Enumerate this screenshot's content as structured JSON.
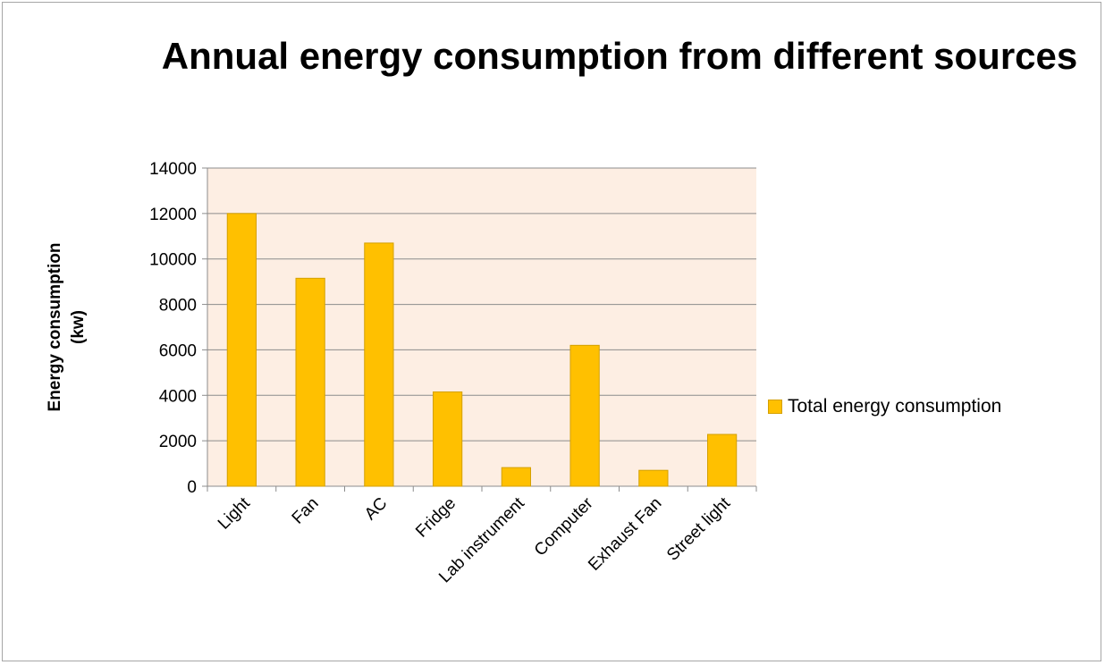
{
  "chart_data": {
    "type": "bar",
    "title": "Annual energy consumption from different sources",
    "ylabel": "Energy consumption (kw)",
    "ylabel_lines": [
      "Energy consumption",
      "(kw)"
    ],
    "xlabel": "",
    "categories": [
      "Light",
      "Fan",
      "AC",
      "Fridge",
      "Lab instrument",
      "Computer",
      "Exhaust Fan",
      "Street light"
    ],
    "series": [
      {
        "name": "Total energy consumption",
        "values": [
          12000,
          9150,
          10700,
          4150,
          820,
          6200,
          700,
          2280
        ]
      }
    ],
    "ylim": [
      0,
      14000
    ],
    "yticks": [
      0,
      2000,
      4000,
      6000,
      8000,
      10000,
      12000,
      14000
    ],
    "grid": true,
    "legend": "right",
    "colors": {
      "bar": "#ffc000",
      "bar_edge": "#d4a000",
      "plot_bg": "#fdeee3",
      "grid": "#8c8c8c"
    }
  }
}
